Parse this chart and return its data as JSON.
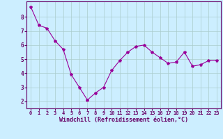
{
  "x": [
    0,
    1,
    2,
    3,
    4,
    5,
    6,
    7,
    8,
    9,
    10,
    11,
    12,
    13,
    14,
    15,
    16,
    17,
    18,
    19,
    20,
    21,
    22,
    23
  ],
  "y": [
    8.7,
    7.4,
    7.2,
    6.3,
    5.7,
    3.9,
    3.0,
    2.1,
    2.6,
    3.0,
    4.2,
    4.9,
    5.5,
    5.9,
    6.0,
    5.5,
    5.1,
    4.7,
    4.8,
    5.5,
    4.5,
    4.6,
    4.9,
    4.9
  ],
  "line_color": "#990099",
  "marker": "*",
  "marker_size": 3,
  "bg_color": "#cceeff",
  "grid_color": "#aacccc",
  "xlabel": "Windchill (Refroidissement éolien,°C)",
  "xlabel_color": "#660066",
  "tick_color": "#660066",
  "xlim": [
    -0.5,
    23.5
  ],
  "ylim": [
    1.5,
    9.1
  ],
  "yticks": [
    2,
    3,
    4,
    5,
    6,
    7,
    8
  ],
  "xticks": [
    0,
    1,
    2,
    3,
    4,
    5,
    6,
    7,
    8,
    9,
    10,
    11,
    12,
    13,
    14,
    15,
    16,
    17,
    18,
    19,
    20,
    21,
    22,
    23
  ],
  "spine_color": "#660066",
  "font_family": "monospace",
  "tick_fontsize": 5,
  "xlabel_fontsize": 6,
  "ytick_fontsize": 5.5
}
